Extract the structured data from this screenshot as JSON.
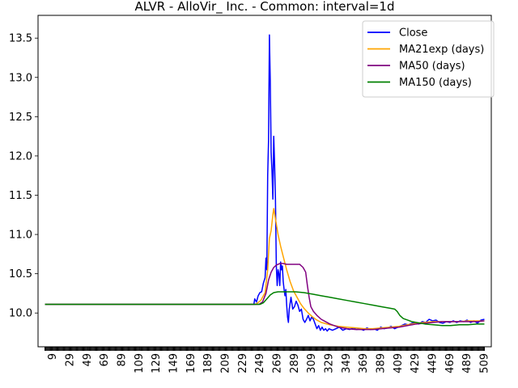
{
  "chart_data": {
    "type": "line",
    "title": "ALVR - AlloVir_ Inc. - Common: interval=1d",
    "xlabel": "",
    "ylabel": "",
    "xlim": [
      -8,
      517
    ],
    "ylim": [
      9.57,
      13.79
    ],
    "grid": false,
    "legend_position": "top-right",
    "x_ticks": [
      9,
      29,
      49,
      69,
      89,
      109,
      129,
      149,
      169,
      189,
      209,
      229,
      249,
      269,
      289,
      309,
      329,
      349,
      369,
      389,
      409,
      429,
      449,
      469,
      489,
      509
    ],
    "y_ticks": [
      10.0,
      10.5,
      11.0,
      11.5,
      12.0,
      12.5,
      13.0,
      13.5
    ],
    "series": [
      {
        "name": "Close",
        "color": "#0000ff",
        "points": [
          [
            0,
            10.11
          ],
          [
            242,
            10.11
          ],
          [
            243,
            10.18
          ],
          [
            245,
            10.14
          ],
          [
            247,
            10.22
          ],
          [
            249,
            10.26
          ],
          [
            251,
            10.27
          ],
          [
            253,
            10.38
          ],
          [
            255,
            10.45
          ],
          [
            256,
            10.7
          ],
          [
            257,
            10.55
          ],
          [
            258,
            11.75
          ],
          [
            259,
            12.2
          ],
          [
            260,
            13.54
          ],
          [
            261,
            12.95
          ],
          [
            262,
            12.05
          ],
          [
            263,
            11.8
          ],
          [
            264,
            11.45
          ],
          [
            265,
            12.25
          ],
          [
            266,
            11.9
          ],
          [
            267,
            11.45
          ],
          [
            268,
            10.6
          ],
          [
            269,
            10.35
          ],
          [
            270,
            10.55
          ],
          [
            271,
            10.5
          ],
          [
            272,
            10.35
          ],
          [
            273,
            10.65
          ],
          [
            274,
            10.55
          ],
          [
            275,
            10.6
          ],
          [
            276,
            10.4
          ],
          [
            277,
            10.3
          ],
          [
            278,
            10.22
          ],
          [
            279,
            10.3
          ],
          [
            280,
            10.1
          ],
          [
            281,
            9.95
          ],
          [
            282,
            9.88
          ],
          [
            283,
            10.05
          ],
          [
            285,
            10.2
          ],
          [
            287,
            10.05
          ],
          [
            289,
            10.08
          ],
          [
            291,
            10.15
          ],
          [
            293,
            10.1
          ],
          [
            295,
            10.02
          ],
          [
            297,
            10.05
          ],
          [
            299,
            9.92
          ],
          [
            301,
            9.88
          ],
          [
            303,
            9.92
          ],
          [
            305,
            9.97
          ],
          [
            307,
            9.9
          ],
          [
            309,
            9.95
          ],
          [
            311,
            9.92
          ],
          [
            313,
            9.86
          ],
          [
            315,
            9.8
          ],
          [
            317,
            9.84
          ],
          [
            319,
            9.78
          ],
          [
            321,
            9.82
          ],
          [
            323,
            9.78
          ],
          [
            325,
            9.8
          ],
          [
            327,
            9.77
          ],
          [
            329,
            9.8
          ],
          [
            333,
            9.78
          ],
          [
            337,
            9.8
          ],
          [
            341,
            9.82
          ],
          [
            345,
            9.78
          ],
          [
            349,
            9.8
          ],
          [
            353,
            9.79
          ],
          [
            357,
            9.81
          ],
          [
            361,
            9.79
          ],
          [
            365,
            9.8
          ],
          [
            369,
            9.78
          ],
          [
            373,
            9.81
          ],
          [
            377,
            9.79
          ],
          [
            381,
            9.8
          ],
          [
            385,
            9.78
          ],
          [
            389,
            9.82
          ],
          [
            393,
            9.8
          ],
          [
            397,
            9.81
          ],
          [
            401,
            9.83
          ],
          [
            405,
            9.8
          ],
          [
            409,
            9.82
          ],
          [
            413,
            9.84
          ],
          [
            417,
            9.86
          ],
          [
            421,
            9.85
          ],
          [
            425,
            9.87
          ],
          [
            429,
            9.88
          ],
          [
            433,
            9.86
          ],
          [
            437,
            9.89
          ],
          [
            441,
            9.88
          ],
          [
            445,
            9.92
          ],
          [
            449,
            9.9
          ],
          [
            453,
            9.91
          ],
          [
            457,
            9.88
          ],
          [
            461,
            9.87
          ],
          [
            465,
            9.89
          ],
          [
            469,
            9.88
          ],
          [
            473,
            9.9
          ],
          [
            477,
            9.88
          ],
          [
            481,
            9.9
          ],
          [
            485,
            9.89
          ],
          [
            489,
            9.91
          ],
          [
            493,
            9.88
          ],
          [
            497,
            9.9
          ],
          [
            501,
            9.87
          ],
          [
            505,
            9.91
          ],
          [
            509,
            9.92
          ]
        ]
      },
      {
        "name": "MA21exp (days)",
        "color": "#ffa500",
        "points": [
          [
            0,
            10.11
          ],
          [
            244,
            10.11
          ],
          [
            250,
            10.16
          ],
          [
            255,
            10.26
          ],
          [
            258,
            10.55
          ],
          [
            260,
            10.95
          ],
          [
            262,
            11.05
          ],
          [
            264,
            11.25
          ],
          [
            265,
            11.33
          ],
          [
            267,
            11.2
          ],
          [
            270,
            11.0
          ],
          [
            273,
            10.85
          ],
          [
            276,
            10.72
          ],
          [
            280,
            10.55
          ],
          [
            284,
            10.4
          ],
          [
            288,
            10.28
          ],
          [
            292,
            10.2
          ],
          [
            296,
            10.12
          ],
          [
            300,
            10.06
          ],
          [
            305,
            10.0
          ],
          [
            310,
            9.95
          ],
          [
            315,
            9.91
          ],
          [
            320,
            9.88
          ],
          [
            330,
            9.85
          ],
          [
            340,
            9.83
          ],
          [
            350,
            9.82
          ],
          [
            360,
            9.81
          ],
          [
            370,
            9.8
          ],
          [
            380,
            9.8
          ],
          [
            390,
            9.81
          ],
          [
            400,
            9.82
          ],
          [
            410,
            9.83
          ],
          [
            420,
            9.85
          ],
          [
            430,
            9.87
          ],
          [
            440,
            9.88
          ],
          [
            450,
            9.89
          ],
          [
            460,
            9.89
          ],
          [
            470,
            9.89
          ],
          [
            480,
            9.89
          ],
          [
            490,
            9.9
          ],
          [
            500,
            9.9
          ],
          [
            509,
            9.9
          ]
        ]
      },
      {
        "name": "MA50 (days)",
        "color": "#800080",
        "points": [
          [
            0,
            10.11
          ],
          [
            248,
            10.11
          ],
          [
            252,
            10.14
          ],
          [
            256,
            10.25
          ],
          [
            259,
            10.42
          ],
          [
            262,
            10.52
          ],
          [
            265,
            10.58
          ],
          [
            268,
            10.61
          ],
          [
            272,
            10.63
          ],
          [
            276,
            10.63
          ],
          [
            280,
            10.62
          ],
          [
            285,
            10.62
          ],
          [
            290,
            10.62
          ],
          [
            295,
            10.62
          ],
          [
            299,
            10.58
          ],
          [
            302,
            10.52
          ],
          [
            304,
            10.35
          ],
          [
            306,
            10.2
          ],
          [
            308,
            10.08
          ],
          [
            311,
            10.02
          ],
          [
            315,
            9.97
          ],
          [
            320,
            9.92
          ],
          [
            325,
            9.89
          ],
          [
            330,
            9.86
          ],
          [
            335,
            9.84
          ],
          [
            340,
            9.82
          ],
          [
            350,
            9.8
          ],
          [
            360,
            9.79
          ],
          [
            370,
            9.79
          ],
          [
            380,
            9.79
          ],
          [
            390,
            9.8
          ],
          [
            400,
            9.81
          ],
          [
            410,
            9.82
          ],
          [
            420,
            9.84
          ],
          [
            430,
            9.86
          ],
          [
            440,
            9.87
          ],
          [
            450,
            9.88
          ],
          [
            460,
            9.89
          ],
          [
            470,
            9.89
          ],
          [
            480,
            9.89
          ],
          [
            490,
            9.89
          ],
          [
            500,
            9.89
          ],
          [
            509,
            9.9
          ]
        ]
      },
      {
        "name": "MA150 (days)",
        "color": "#008000",
        "points": [
          [
            0,
            10.11
          ],
          [
            249,
            10.11
          ],
          [
            253,
            10.13
          ],
          [
            257,
            10.18
          ],
          [
            261,
            10.23
          ],
          [
            265,
            10.26
          ],
          [
            270,
            10.27
          ],
          [
            280,
            10.27
          ],
          [
            290,
            10.27
          ],
          [
            300,
            10.26
          ],
          [
            310,
            10.24
          ],
          [
            320,
            10.22
          ],
          [
            330,
            10.2
          ],
          [
            340,
            10.18
          ],
          [
            350,
            10.16
          ],
          [
            360,
            10.14
          ],
          [
            370,
            10.12
          ],
          [
            380,
            10.1
          ],
          [
            390,
            10.08
          ],
          [
            400,
            10.06
          ],
          [
            405,
            10.05
          ],
          [
            408,
            10.02
          ],
          [
            411,
            9.97
          ],
          [
            415,
            9.93
          ],
          [
            420,
            9.91
          ],
          [
            425,
            9.89
          ],
          [
            430,
            9.88
          ],
          [
            440,
            9.86
          ],
          [
            450,
            9.85
          ],
          [
            460,
            9.84
          ],
          [
            470,
            9.84
          ],
          [
            480,
            9.85
          ],
          [
            490,
            9.85
          ],
          [
            500,
            9.86
          ],
          [
            509,
            9.86
          ]
        ]
      }
    ]
  }
}
